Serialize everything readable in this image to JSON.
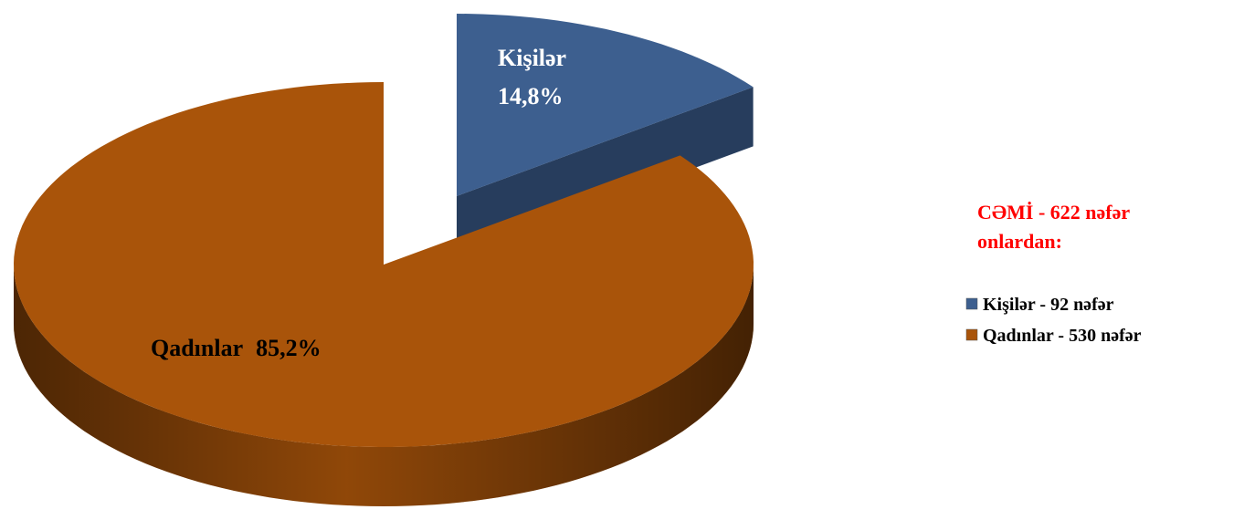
{
  "chart_data": {
    "type": "pie",
    "categories": [
      "Kişilər",
      "Qadınlar"
    ],
    "values": [
      14.8,
      85.2
    ],
    "value_labels": [
      "14,8%",
      "85,2%"
    ],
    "colors": [
      "#3d5f8f",
      "#a9540a"
    ],
    "legend_labels": [
      "Kişilər - 92 nəfər",
      "Qadınlar - 530 nəfər"
    ],
    "annotations": [
      "CƏMİ - 622 nəfər",
      "onlardan:"
    ]
  }
}
